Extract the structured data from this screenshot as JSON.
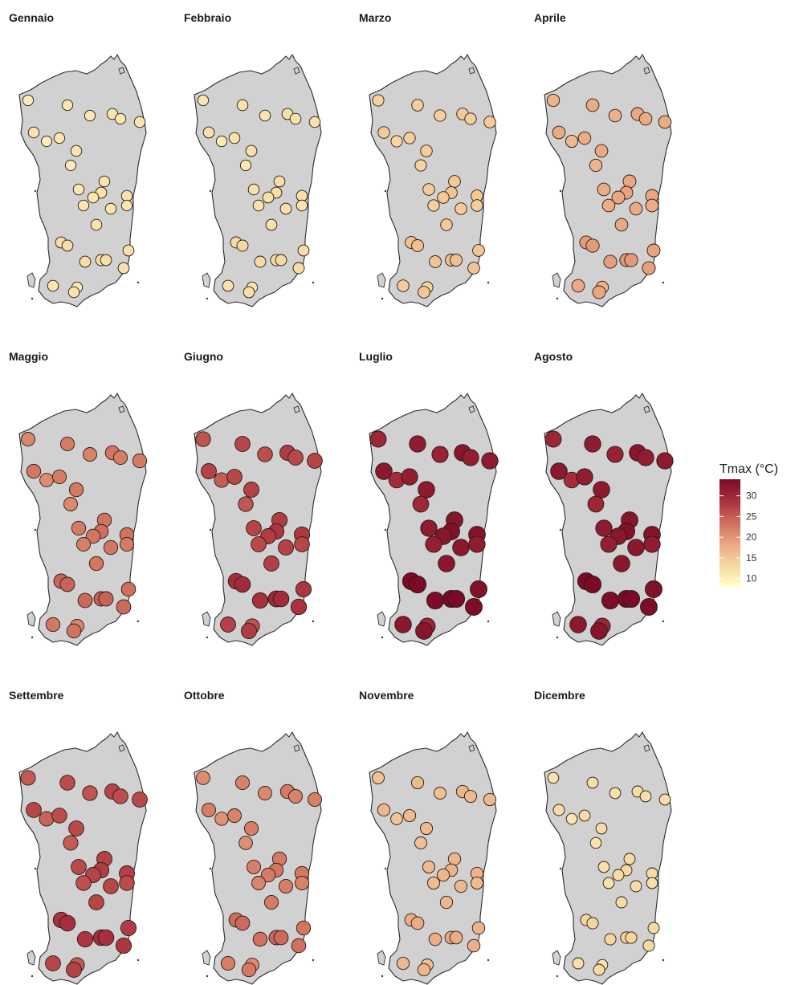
{
  "months": [
    "Gennaio",
    "Febbraio",
    "Marzo",
    "Aprile",
    "Maggio",
    "Giugno",
    "Luglio",
    "Agosto",
    "Settembre",
    "Ottobre",
    "Novembre",
    "Dicembre"
  ],
  "monthly_tmax": [
    11,
    11.5,
    14,
    17.5,
    22,
    26.5,
    31,
    31,
    26,
    21.5,
    16,
    12
  ],
  "legend": {
    "title": "Tmax (°C)",
    "ticks": [
      {
        "value": 30,
        "label": "30"
      },
      {
        "value": 25,
        "label": "25"
      },
      {
        "value": 20,
        "label": "20"
      },
      {
        "value": 15,
        "label": "15"
      },
      {
        "value": 10,
        "label": "10"
      }
    ],
    "range": [
      8,
      34
    ],
    "colors": [
      "#ffffcc",
      "#f6d7a0",
      "#e9a781",
      "#cf6e5d",
      "#a8303c",
      "#7a0a26"
    ]
  },
  "colors": {
    "land": "#d1d1d1",
    "coast": "#2b2b2b",
    "station_stroke": "#2a1a14",
    "background": "#ffffff"
  }
}
